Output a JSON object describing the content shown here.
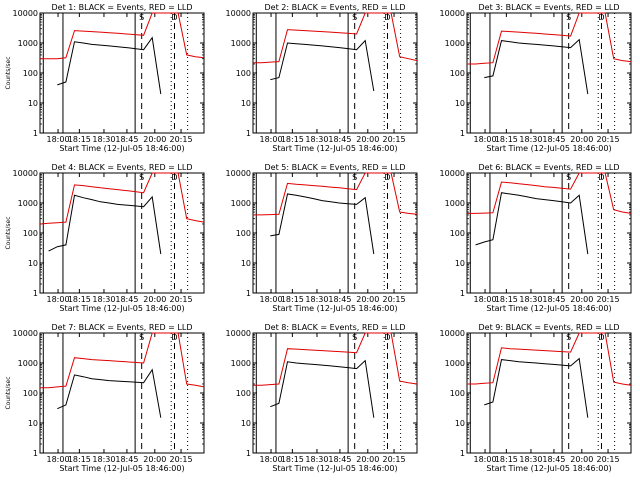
{
  "figure": {
    "panels": [
      {
        "title": "Det  1: BLACK = Events, RED = LLD",
        "xlabel": "Start Time (12-Jul-05 18:46:00)",
        "ylabel": "Counts/sec"
      },
      {
        "title": "Det  2: BLACK = Events, RED = LLD",
        "xlabel": "Start Time (12-Jul-05 18:46:00)",
        "ylabel": ""
      },
      {
        "title": "Det  3: BLACK = Events, RED = LLD",
        "xlabel": "Start Time (12-Jul-05 18:46:00)",
        "ylabel": ""
      },
      {
        "title": "Det  4: BLACK = Events, RED = LLD",
        "xlabel": "Start Time (12-Jul-05 18:46:00)",
        "ylabel": "Counts/sec"
      },
      {
        "title": "Det  5: BLACK = Events, RED = LLD",
        "xlabel": "Start Time (12-Jul-05 18:46:00)",
        "ylabel": ""
      },
      {
        "title": "Det  6: BLACK = Events, RED = LLD",
        "xlabel": "Start Time (12-Jul-05 18:46:00)",
        "ylabel": ""
      },
      {
        "title": "Det  7: BLACK = Events, RED = LLD",
        "xlabel": "Start Time (12-Jul-05 18:46:00)",
        "ylabel": "Counts/sec"
      },
      {
        "title": "Det  8: BLACK = Events, RED = LLD",
        "xlabel": "Start Time (12-Jul-05 18:46:00)",
        "ylabel": ""
      },
      {
        "title": "Det  9: BLACK = Events, RED = LLD",
        "xlabel": "Start Time (12-Jul-05 18:46:00)",
        "ylabel": ""
      }
    ]
  },
  "chart_data": {
    "type": "line",
    "layout": "3x3 grid",
    "x_unit": "clock time HH:MM",
    "x_ticks": [
      "18:00",
      "18:15",
      "18:30",
      "18:45",
      "20:00",
      "20:15"
    ],
    "y_scale": "log",
    "y_ticks": [
      "1",
      "10",
      "100",
      "1000",
      "10000"
    ],
    "ylim": [
      1,
      10000
    ],
    "markers": [
      {
        "label": "S",
        "style": "solid"
      },
      {
        "label": "D",
        "style": "dashed"
      }
    ],
    "series_colors": {
      "events": "#000000",
      "lld": "#e00000"
    },
    "panels": [
      {
        "detector": 1,
        "series": [
          {
            "color": "#000000",
            "values": [
              null,
              null,
              40,
              50,
              1100,
              1000,
              900,
              850,
              800,
              750,
              700,
              650,
              600,
              1500,
              20,
              null,
              null,
              null,
              null,
              null
            ]
          },
          {
            "color": "#e00000",
            "values": [
              300,
              300,
              300,
              320,
              2600,
              2500,
              2400,
              2300,
              2200,
              2100,
              2000,
              1900,
              1800,
              10000,
              10000,
              10000,
              10000,
              400,
              350,
              320
            ]
          }
        ]
      },
      {
        "detector": 2,
        "series": [
          {
            "color": "#000000",
            "values": [
              null,
              null,
              60,
              70,
              1000,
              950,
              900,
              850,
              800,
              750,
              700,
              650,
              600,
              1200,
              25,
              null,
              null,
              null,
              null,
              null
            ]
          },
          {
            "color": "#e00000",
            "values": [
              220,
              220,
              230,
              240,
              2800,
              2700,
              2600,
              2500,
              2400,
              2300,
              2200,
              2100,
              2000,
              10000,
              10000,
              10000,
              10000,
              350,
              300,
              260
            ]
          }
        ]
      },
      {
        "detector": 3,
        "series": [
          {
            "color": "#000000",
            "values": [
              null,
              null,
              70,
              80,
              1200,
              1100,
              1000,
              950,
              900,
              850,
              800,
              750,
              700,
              1300,
              20,
              null,
              null,
              null,
              null,
              null
            ]
          },
          {
            "color": "#e00000",
            "values": [
              200,
              200,
              210,
              220,
              2500,
              2400,
              2300,
              2200,
              2100,
              2000,
              1900,
              1800,
              1700,
              10000,
              10000,
              10000,
              10000,
              300,
              260,
              240
            ]
          }
        ]
      },
      {
        "detector": 4,
        "series": [
          {
            "color": "#000000",
            "values": [
              null,
              25,
              35,
              40,
              1800,
              1500,
              1300,
              1100,
              1000,
              900,
              850,
              800,
              750,
              1600,
              20,
              null,
              null,
              null,
              null,
              null
            ]
          },
          {
            "color": "#e00000",
            "values": [
              200,
              210,
              220,
              230,
              4000,
              3800,
              3500,
              3200,
              3000,
              2800,
              2600,
              2400,
              2200,
              10000,
              10000,
              10000,
              10000,
              300,
              260,
              230
            ]
          }
        ]
      },
      {
        "detector": 5,
        "series": [
          {
            "color": "#000000",
            "values": [
              null,
              null,
              80,
              90,
              2000,
              1800,
              1600,
              1400,
              1200,
              1100,
              1000,
              950,
              900,
              1500,
              20,
              null,
              null,
              null,
              null,
              null
            ]
          },
          {
            "color": "#e00000",
            "values": [
              400,
              400,
              410,
              420,
              4500,
              4200,
              4000,
              3800,
              3600,
              3400,
              3200,
              3000,
              2800,
              10000,
              10000,
              10000,
              10000,
              500,
              450,
              420
            ]
          }
        ]
      },
      {
        "detector": 6,
        "series": [
          {
            "color": "#000000",
            "values": [
              null,
              40,
              50,
              60,
              2200,
              2000,
              1800,
              1600,
              1400,
              1300,
              1200,
              1100,
              1000,
              1800,
              20,
              null,
              null,
              null,
              null,
              null
            ]
          },
          {
            "color": "#e00000",
            "values": [
              450,
              450,
              460,
              470,
              5000,
              4700,
              4400,
              4100,
              3800,
              3500,
              3300,
              3100,
              2900,
              10000,
              10000,
              10000,
              10000,
              600,
              500,
              450
            ]
          }
        ]
      },
      {
        "detector": 7,
        "series": [
          {
            "color": "#000000",
            "values": [
              null,
              null,
              30,
              40,
              400,
              350,
              300,
              280,
              260,
              250,
              240,
              230,
              220,
              600,
              15,
              null,
              null,
              null,
              null,
              null
            ]
          },
          {
            "color": "#e00000",
            "values": [
              150,
              150,
              160,
              170,
              1500,
              1400,
              1300,
              1250,
              1200,
              1150,
              1100,
              1050,
              1000,
              10000,
              10000,
              10000,
              10000,
              200,
              180,
              160
            ]
          }
        ]
      },
      {
        "detector": 8,
        "series": [
          {
            "color": "#000000",
            "values": [
              null,
              null,
              35,
              45,
              1100,
              1000,
              950,
              900,
              850,
              800,
              750,
              700,
              650,
              1200,
              15,
              null,
              null,
              null,
              null,
              null
            ]
          },
          {
            "color": "#e00000",
            "values": [
              180,
              180,
              190,
              200,
              3000,
              2900,
              2800,
              2700,
              2600,
              2500,
              2400,
              2300,
              2200,
              10000,
              10000,
              10000,
              10000,
              250,
              220,
              200
            ]
          }
        ]
      },
      {
        "detector": 9,
        "series": [
          {
            "color": "#000000",
            "values": [
              null,
              null,
              40,
              50,
              1300,
              1200,
              1100,
              1050,
              1000,
              950,
              900,
              850,
              800,
              1400,
              15,
              null,
              null,
              null,
              null,
              null
            ]
          },
          {
            "color": "#e00000",
            "values": [
              200,
              200,
              210,
              220,
              3200,
              3000,
              2900,
              2800,
              2700,
              2600,
              2500,
              2400,
              2300,
              10000,
              10000,
              10000,
              10000,
              230,
              200,
              180
            ]
          }
        ]
      }
    ]
  }
}
